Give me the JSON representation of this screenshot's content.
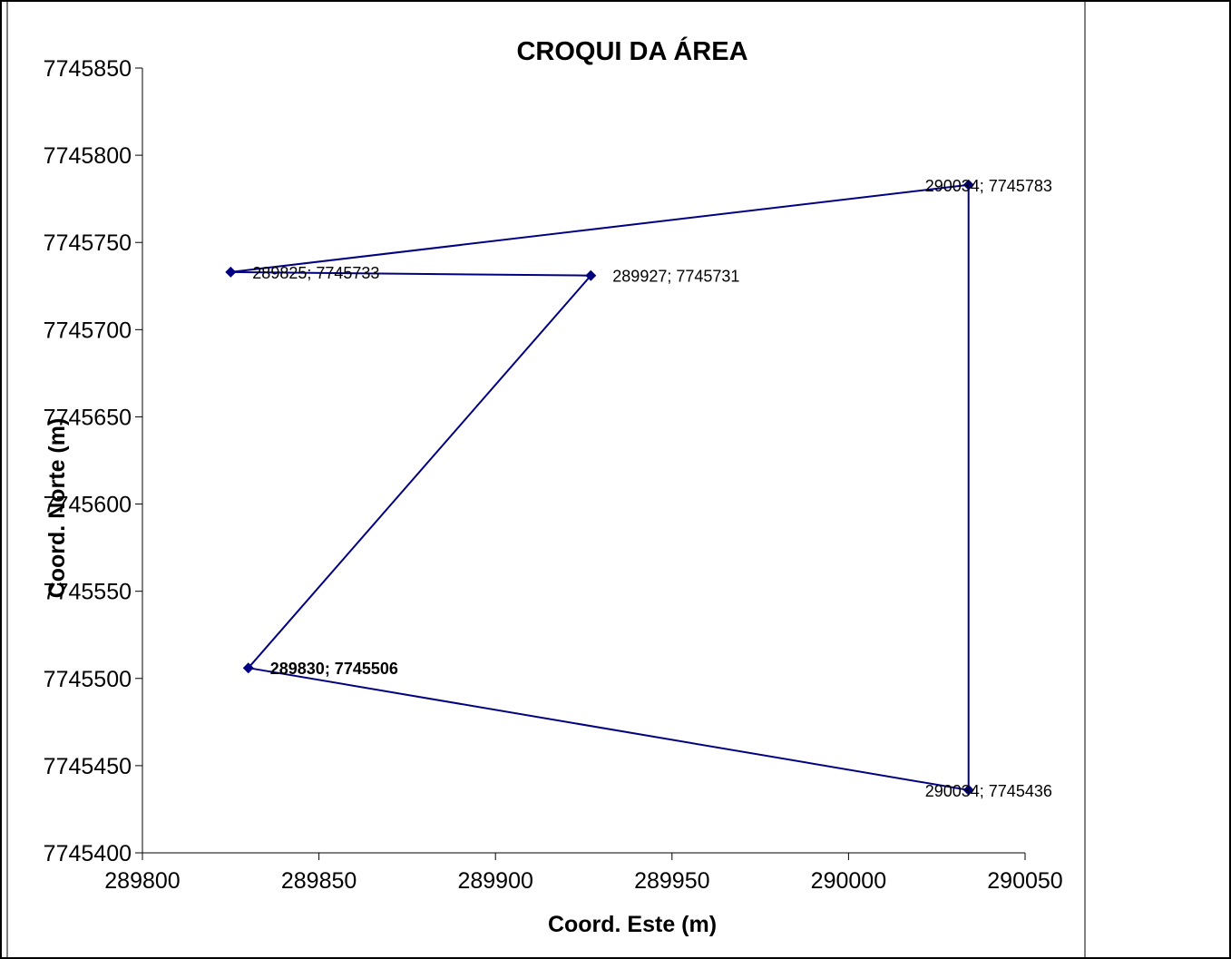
{
  "chart_data": {
    "type": "scatter",
    "title": "CROQUI DA ÁREA",
    "xlabel": "Coord. Este (m)",
    "ylabel": "Coord. Norte (m)",
    "xlim": [
      289800,
      290050
    ],
    "ylim": [
      7745400,
      7745850
    ],
    "xticks": [
      289800,
      289850,
      289900,
      289950,
      290000,
      290050
    ],
    "yticks": [
      7745400,
      7745450,
      7745500,
      7745550,
      7745600,
      7745650,
      7745700,
      7745750,
      7745800,
      7745850
    ],
    "grid": false,
    "legend": "none",
    "line_connected": true,
    "series": [
      {
        "color": "#000080",
        "points": [
          {
            "x": 289830,
            "y": 7745506,
            "label": "289830; 7745506"
          },
          {
            "x": 289927,
            "y": 7745731,
            "label": "289927; 7745731"
          },
          {
            "x": 289825,
            "y": 7745733,
            "label": "289825; 7745733"
          },
          {
            "x": 290034,
            "y": 7745783,
            "label": "290034; 7745783"
          },
          {
            "x": 290034,
            "y": 7745436,
            "label": "290034; 7745436"
          },
          {
            "x": 289830,
            "y": 7745506,
            "label": "289830; 7745506"
          }
        ]
      }
    ]
  }
}
